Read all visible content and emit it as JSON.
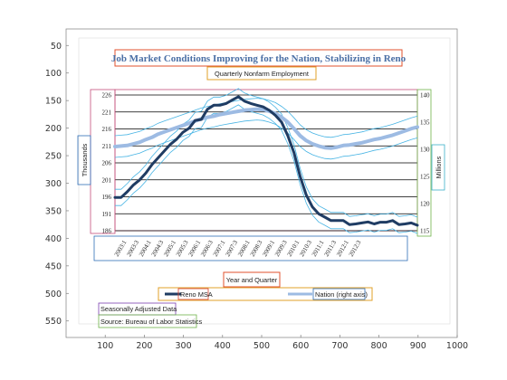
{
  "colors": {
    "reno_line": "#1f3c63",
    "nation_line": "#9dbbe3",
    "band_line": "#47b4e4",
    "grid": "#000000",
    "title_text": "#4a6fa5",
    "title_box": "#e0522d",
    "ann_orange": "#e0a02a",
    "ann_purple": "#7b3fb0",
    "ann_green": "#6fb34a",
    "ann_blue": "#2f6fb7",
    "ann_red": "#d6402c",
    "ann_teal": "#3ab0c8"
  },
  "chart_data": {
    "type": "line",
    "title": "Job Market Conditions Improving for the Nation, Stabilizing in Reno",
    "subtitle": "Quarterly Nonfarm Employment",
    "xlabel": "Year and Quarter",
    "ylabel_left": "Thousands",
    "ylabel_right": "Millions",
    "notes": [
      "Seasonally Adjusted Data",
      "Source: Bureau of Labor Statistics"
    ],
    "legend_placement": "bottom",
    "outer_axes": {
      "x_ticks": [
        100,
        200,
        300,
        400,
        500,
        600,
        700,
        800,
        900,
        1000
      ],
      "y_ticks": [
        50,
        100,
        150,
        200,
        250,
        300,
        350,
        400,
        450,
        500,
        550
      ],
      "xlim": [
        0,
        1000
      ],
      "ylim": [
        580,
        20
      ],
      "y_reversed": true
    },
    "left_axis": {
      "ticks": [
        186,
        191,
        196,
        201,
        206,
        211,
        216,
        221,
        226
      ],
      "ylim": [
        186,
        226
      ]
    },
    "right_axis": {
      "ticks": [
        115,
        120,
        125,
        130,
        135,
        140
      ],
      "ylim": [
        115,
        140
      ]
    },
    "quarter_labels": [
      "2003:1",
      "2003:3",
      "2004:1",
      "2004:3",
      "2005:1",
      "2005:3",
      "2006:1",
      "2006:3",
      "2007:1",
      "2007:3",
      "2008:1",
      "2008:3",
      "2009:1",
      "2009:3",
      "2010:1",
      "2010:3",
      "2011:1",
      "2011:3",
      "2012:1",
      "2012:3"
    ],
    "grid": true,
    "series": [
      {
        "name": "Reno MSA",
        "axis": "left",
        "values": [
          195.8,
          195.8,
          197.5,
          199.5,
          201,
          203,
          205.5,
          207.5,
          209.5,
          211.5,
          213,
          215,
          216.2,
          218.5,
          218.8,
          221.8,
          223,
          223,
          223.5,
          224.5,
          225.5,
          224.2,
          223.5,
          223,
          222.5,
          221.5,
          220,
          218,
          214,
          209,
          202,
          196.5,
          193,
          191,
          190,
          189,
          189,
          189,
          187.8,
          188,
          188.3,
          188.6,
          188,
          188.5,
          188.5,
          189,
          187.8,
          188,
          188.3,
          187.6
        ]
      },
      {
        "name": "Nation (right axis)",
        "axis": "right",
        "values": [
          130.5,
          130.6,
          130.7,
          131.0,
          131.3,
          131.8,
          132.2,
          132.8,
          133.2,
          133.6,
          134.0,
          134.4,
          134.8,
          135.2,
          135.6,
          135.9,
          136.1,
          136.4,
          136.6,
          136.8,
          137.0,
          137.2,
          137.3,
          137.4,
          137.3,
          137.0,
          136.6,
          135.9,
          135.0,
          133.8,
          132.5,
          131.6,
          131.0,
          130.6,
          130.3,
          130.2,
          130.4,
          130.7,
          130.8,
          131.0,
          131.2,
          131.5,
          131.8,
          132.0,
          132.3,
          132.6,
          133.0,
          133.4,
          133.8,
          134.1
        ]
      }
    ]
  }
}
